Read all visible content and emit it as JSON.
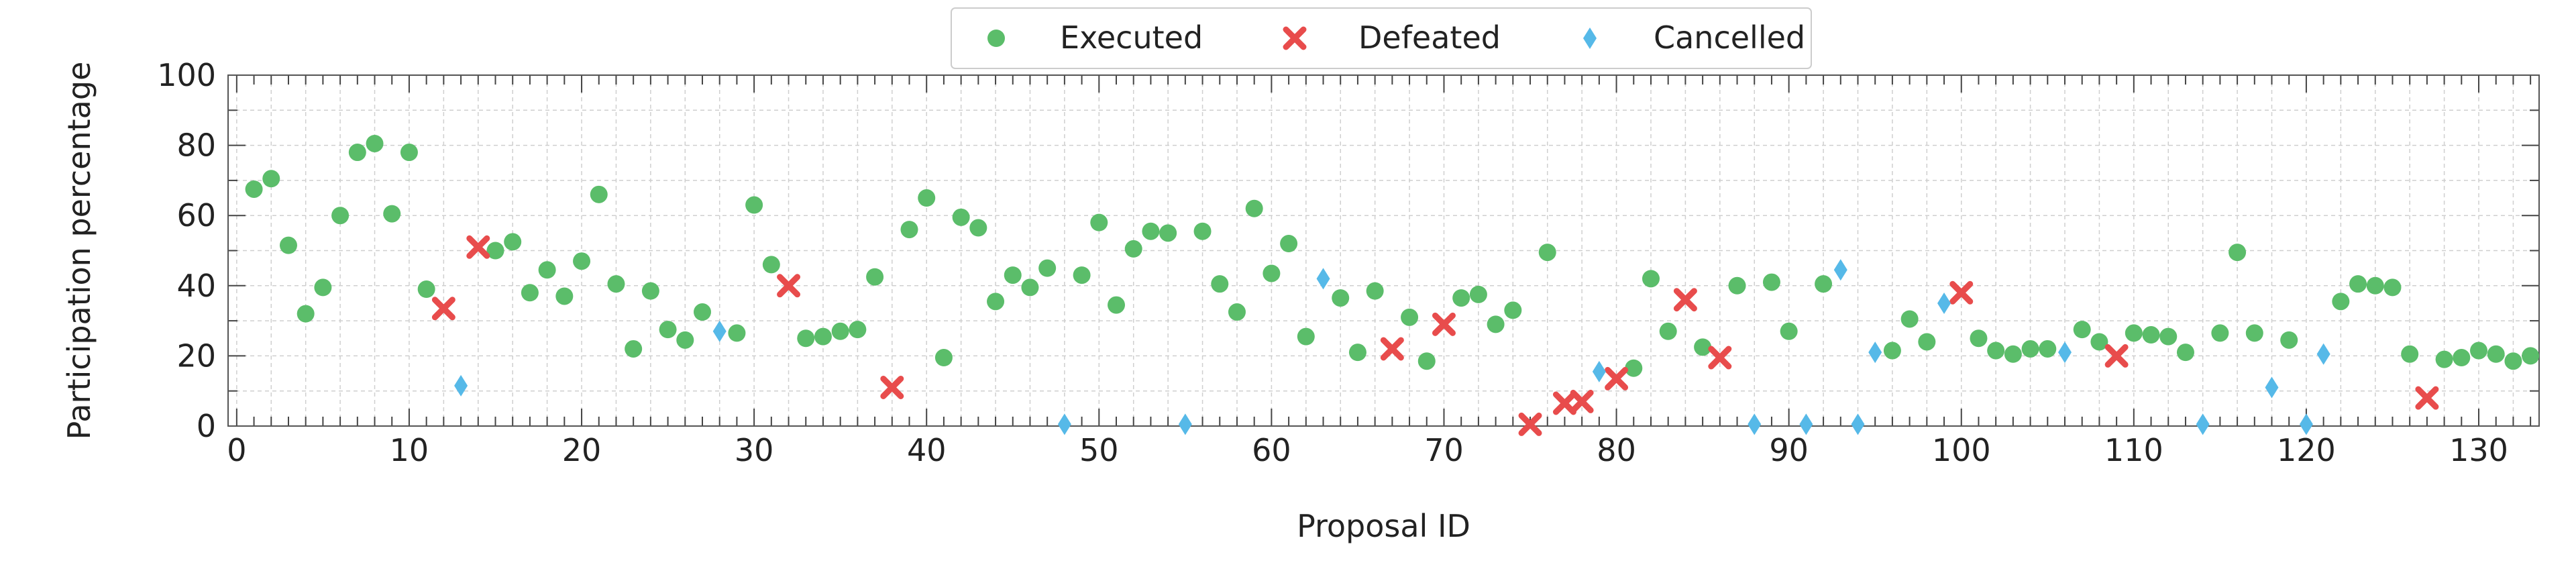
{
  "chart_data": {
    "type": "scatter",
    "title": "",
    "xlabel": "Proposal ID",
    "ylabel": "Participation percentage",
    "xlim": [
      -0.5,
      133.5
    ],
    "ylim": [
      0,
      100
    ],
    "xticks": [
      0,
      10,
      20,
      30,
      40,
      50,
      60,
      70,
      80,
      90,
      100,
      110,
      120,
      130
    ],
    "yticks": [
      0,
      20,
      40,
      60,
      80,
      100
    ],
    "grid": true,
    "legend_position": "top-center",
    "series": [
      {
        "name": "Executed",
        "color": "#5bbd6a",
        "marker": "circle",
        "points": [
          [
            1,
            67.5
          ],
          [
            2,
            70.5
          ],
          [
            3,
            51.5
          ],
          [
            4,
            32
          ],
          [
            5,
            39.5
          ],
          [
            6,
            60
          ],
          [
            7,
            78
          ],
          [
            8,
            80.5
          ],
          [
            9,
            60.5
          ],
          [
            10,
            78
          ],
          [
            11,
            39
          ],
          [
            15,
            50
          ],
          [
            16,
            52.5
          ],
          [
            17,
            38
          ],
          [
            18,
            44.5
          ],
          [
            19,
            37
          ],
          [
            20,
            47
          ],
          [
            21,
            66
          ],
          [
            22,
            40.5
          ],
          [
            23,
            22
          ],
          [
            24,
            38.5
          ],
          [
            25,
            27.5
          ],
          [
            26,
            24.5
          ],
          [
            27,
            32.5
          ],
          [
            29,
            26.5
          ],
          [
            30,
            63
          ],
          [
            31,
            46
          ],
          [
            33,
            25
          ],
          [
            34,
            25.5
          ],
          [
            35,
            27
          ],
          [
            36,
            27.5
          ],
          [
            37,
            42.5
          ],
          [
            39,
            56
          ],
          [
            40,
            65
          ],
          [
            41,
            19.5
          ],
          [
            42,
            59.5
          ],
          [
            43,
            56.5
          ],
          [
            44,
            35.5
          ],
          [
            45,
            43
          ],
          [
            46,
            39.5
          ],
          [
            47,
            45
          ],
          [
            49,
            43
          ],
          [
            50,
            58
          ],
          [
            51,
            34.5
          ],
          [
            52,
            50.5
          ],
          [
            53,
            55.5
          ],
          [
            54,
            55
          ],
          [
            56,
            55.5
          ],
          [
            57,
            40.5
          ],
          [
            58,
            32.5
          ],
          [
            59,
            62
          ],
          [
            60,
            43.5
          ],
          [
            61,
            52
          ],
          [
            62,
            25.5
          ],
          [
            64,
            36.5
          ],
          [
            65,
            21
          ],
          [
            66,
            38.5
          ],
          [
            68,
            31
          ],
          [
            69,
            18.5
          ],
          [
            71,
            36.5
          ],
          [
            72,
            37.5
          ],
          [
            73,
            29
          ],
          [
            74,
            33
          ],
          [
            76,
            49.5
          ],
          [
            81,
            16.5
          ],
          [
            82,
            42
          ],
          [
            83,
            27
          ],
          [
            85,
            22.5
          ],
          [
            87,
            40
          ],
          [
            89,
            41
          ],
          [
            90,
            27
          ],
          [
            92,
            40.5
          ],
          [
            96,
            21.5
          ],
          [
            97,
            30.5
          ],
          [
            98,
            24
          ],
          [
            101,
            25
          ],
          [
            102,
            21.5
          ],
          [
            103,
            20.5
          ],
          [
            104,
            22
          ],
          [
            105,
            22
          ],
          [
            107,
            27.5
          ],
          [
            108,
            24
          ],
          [
            110,
            26.5
          ],
          [
            111,
            26
          ],
          [
            112,
            25.5
          ],
          [
            113,
            21
          ],
          [
            115,
            26.5
          ],
          [
            116,
            49.5
          ],
          [
            117,
            26.5
          ],
          [
            119,
            24.5
          ],
          [
            122,
            35.5
          ],
          [
            123,
            40.5
          ],
          [
            124,
            40
          ],
          [
            125,
            39.5
          ],
          [
            126,
            20.5
          ],
          [
            128,
            19
          ],
          [
            129,
            19.5
          ],
          [
            130,
            21.5
          ],
          [
            131,
            20.5
          ],
          [
            132,
            18.5
          ],
          [
            133,
            20
          ]
        ]
      },
      {
        "name": "Defeated",
        "color": "#e84c4c",
        "marker": "x",
        "points": [
          [
            12,
            33.5
          ],
          [
            14,
            51
          ],
          [
            32,
            40
          ],
          [
            38,
            11
          ],
          [
            67,
            22
          ],
          [
            70,
            29
          ],
          [
            75,
            0.5
          ],
          [
            77,
            6.5
          ],
          [
            78,
            7
          ],
          [
            80,
            13.5
          ],
          [
            84,
            36
          ],
          [
            86,
            19.5
          ],
          [
            100,
            38
          ],
          [
            109,
            20
          ],
          [
            127,
            8
          ]
        ]
      },
      {
        "name": "Cancelled",
        "color": "#56b9e8",
        "marker": "diamond",
        "points": [
          [
            13,
            11.5
          ],
          [
            28,
            27
          ],
          [
            48,
            0.5
          ],
          [
            55,
            0.5
          ],
          [
            63,
            42
          ],
          [
            79,
            15.5
          ],
          [
            88,
            0.5
          ],
          [
            91,
            0.5
          ],
          [
            93,
            44.5
          ],
          [
            94,
            0.5
          ],
          [
            95,
            21
          ],
          [
            99,
            35
          ],
          [
            106,
            21
          ],
          [
            114,
            0.5
          ],
          [
            118,
            11
          ],
          [
            120,
            0.5
          ],
          [
            121,
            20.5
          ]
        ]
      }
    ]
  }
}
